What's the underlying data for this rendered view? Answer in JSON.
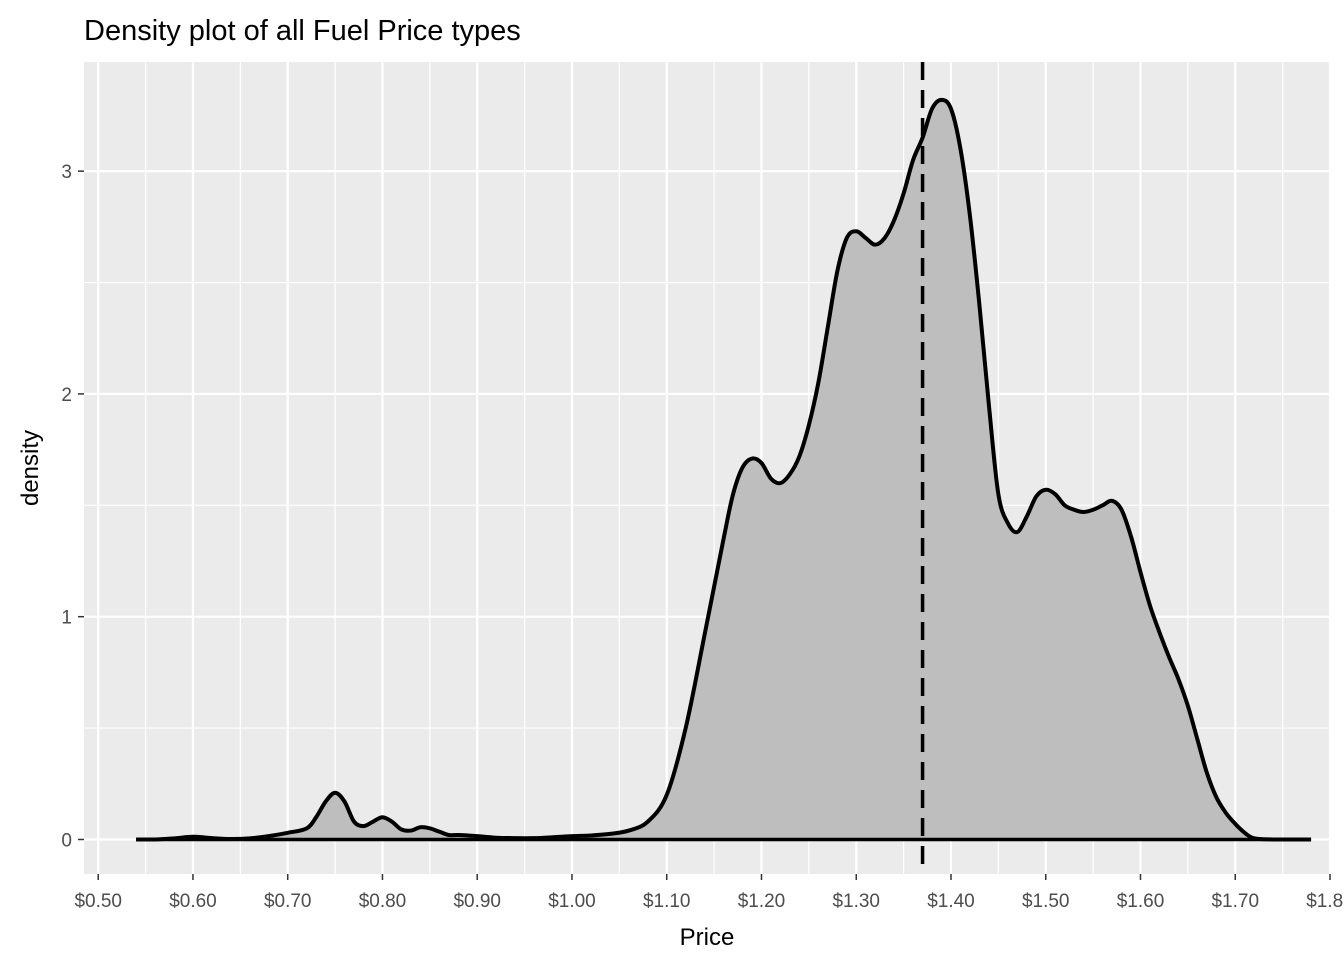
{
  "chart_data": {
    "type": "area",
    "title": "Density plot of all Fuel Price types",
    "xlabel": "Price",
    "ylabel": "density",
    "xlim": [
      0.485,
      1.8
    ],
    "ylim": [
      -0.155,
      3.49
    ],
    "x_ticks": [
      0.5,
      0.6,
      0.7,
      0.8,
      0.9,
      1.0,
      1.1,
      1.2,
      1.3,
      1.4,
      1.5,
      1.6,
      1.7,
      1.8
    ],
    "x_tick_labels": [
      "$0.50",
      "$0.60",
      "$0.70",
      "$0.80",
      "$0.90",
      "$1.00",
      "$1.10",
      "$1.20",
      "$1.30",
      "$1.40",
      "$1.50",
      "$1.60",
      "$1.70",
      "$1.80"
    ],
    "y_ticks": [
      0,
      1,
      2,
      3
    ],
    "y_tick_labels": [
      "0",
      "1",
      "2",
      "3"
    ],
    "grid": true,
    "reference_line": {
      "x": 1.37,
      "style": "dashed"
    },
    "colors": {
      "panel": "#ebebeb",
      "grid": "#ffffff",
      "fill": "#bebebe",
      "line": "#000000"
    },
    "series": [
      {
        "x": [
          0.54,
          0.56,
          0.58,
          0.6,
          0.62,
          0.64,
          0.66,
          0.68,
          0.7,
          0.72,
          0.73,
          0.74,
          0.75,
          0.76,
          0.77,
          0.78,
          0.79,
          0.8,
          0.81,
          0.82,
          0.83,
          0.84,
          0.85,
          0.86,
          0.87,
          0.88,
          0.9,
          0.92,
          0.94,
          0.96,
          0.98,
          1.0,
          1.02,
          1.04,
          1.06,
          1.08,
          1.1,
          1.12,
          1.14,
          1.16,
          1.17,
          1.18,
          1.19,
          1.2,
          1.21,
          1.22,
          1.23,
          1.24,
          1.25,
          1.26,
          1.27,
          1.28,
          1.29,
          1.3,
          1.31,
          1.32,
          1.33,
          1.34,
          1.35,
          1.36,
          1.37,
          1.38,
          1.39,
          1.4,
          1.41,
          1.42,
          1.43,
          1.44,
          1.45,
          1.46,
          1.47,
          1.48,
          1.49,
          1.5,
          1.51,
          1.52,
          1.53,
          1.54,
          1.55,
          1.56,
          1.57,
          1.58,
          1.59,
          1.6,
          1.61,
          1.62,
          1.63,
          1.64,
          1.65,
          1.66,
          1.67,
          1.68,
          1.69,
          1.7,
          1.71,
          1.72,
          1.74,
          1.76,
          1.78
        ],
        "y": [
          0.0,
          0.0,
          0.005,
          0.012,
          0.006,
          0.002,
          0.005,
          0.015,
          0.03,
          0.05,
          0.1,
          0.17,
          0.21,
          0.17,
          0.08,
          0.06,
          0.08,
          0.1,
          0.08,
          0.045,
          0.04,
          0.055,
          0.05,
          0.035,
          0.02,
          0.02,
          0.015,
          0.008,
          0.006,
          0.006,
          0.01,
          0.015,
          0.018,
          0.025,
          0.04,
          0.08,
          0.2,
          0.5,
          0.92,
          1.35,
          1.55,
          1.67,
          1.71,
          1.69,
          1.62,
          1.6,
          1.64,
          1.72,
          1.86,
          2.05,
          2.3,
          2.55,
          2.7,
          2.73,
          2.7,
          2.67,
          2.7,
          2.78,
          2.9,
          3.05,
          3.15,
          3.28,
          3.32,
          3.28,
          3.1,
          2.8,
          2.4,
          1.95,
          1.55,
          1.42,
          1.38,
          1.45,
          1.54,
          1.57,
          1.55,
          1.5,
          1.48,
          1.47,
          1.48,
          1.5,
          1.52,
          1.48,
          1.36,
          1.2,
          1.05,
          0.93,
          0.82,
          0.72,
          0.6,
          0.45,
          0.3,
          0.19,
          0.12,
          0.07,
          0.03,
          0.005,
          0.0,
          0.0,
          0.0
        ]
      }
    ]
  }
}
